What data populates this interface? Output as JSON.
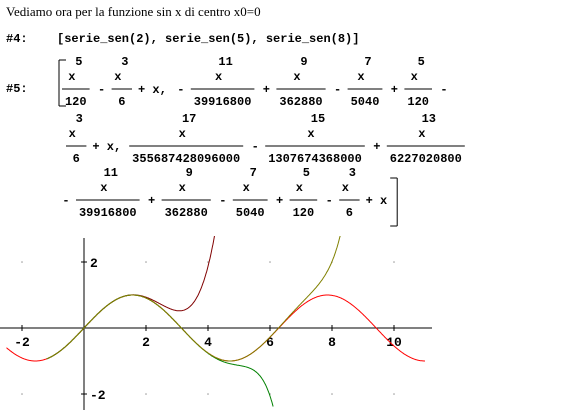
{
  "comment": "Vediamo ora per la funzione sin x di centro x0=0",
  "line4": {
    "label": "#4:",
    "input": "[serie_sen(2), serie_sen(5), serie_sen(8)]"
  },
  "line5": {
    "label": "#5:",
    "terms_row1": [
      {
        "kind": "frac",
        "exp": "5",
        "var": "x",
        "den": "120",
        "sign": ""
      },
      {
        "kind": "frac",
        "exp": "3",
        "var": "x",
        "den": "6",
        "sign": "-"
      },
      {
        "kind": "text",
        "text": "+ x,",
        "sign": ""
      },
      {
        "kind": "frac",
        "exp": "11",
        "var": "x",
        "den": "39916800",
        "sign": "-"
      },
      {
        "kind": "frac",
        "exp": "9",
        "var": "x",
        "den": "362880",
        "sign": "+"
      },
      {
        "kind": "frac",
        "exp": "7",
        "var": "x",
        "den": "5040",
        "sign": "-"
      },
      {
        "kind": "frac",
        "exp": "5",
        "var": "x",
        "den": "120",
        "sign": "+"
      },
      {
        "kind": "sign",
        "sign": "-"
      }
    ],
    "terms_row2": [
      {
        "kind": "frac",
        "exp": "3",
        "var": "x",
        "den": "6",
        "sign": ""
      },
      {
        "kind": "text",
        "text": "+ x,",
        "sign": ""
      },
      {
        "kind": "frac",
        "exp": "17",
        "var": "x",
        "den": "355687428096000",
        "sign": ""
      },
      {
        "kind": "frac",
        "exp": "15",
        "var": "x",
        "den": "1307674368000",
        "sign": "-"
      },
      {
        "kind": "frac",
        "exp": "13",
        "var": "x",
        "den": "6227020800",
        "sign": "+"
      }
    ],
    "terms_row3": [
      {
        "kind": "frac",
        "exp": "11",
        "var": "x",
        "den": "39916800",
        "sign": "-"
      },
      {
        "kind": "frac",
        "exp": "9",
        "var": "x",
        "den": "362880",
        "sign": "+"
      },
      {
        "kind": "frac",
        "exp": "7",
        "var": "x",
        "den": "5040",
        "sign": "-"
      },
      {
        "kind": "frac",
        "exp": "5",
        "var": "x",
        "den": "120",
        "sign": "+"
      },
      {
        "kind": "frac",
        "exp": "3",
        "var": "x",
        "den": "6",
        "sign": "-"
      },
      {
        "kind": "text",
        "text": "+ x",
        "sign": ""
      }
    ]
  },
  "chart_data": {
    "type": "line",
    "xlim": [
      -2.5,
      11
    ],
    "ylim": [
      -2.4,
      2.4
    ],
    "x_ticks": [
      "-2",
      "2",
      "4",
      "6",
      "8",
      "10"
    ],
    "y_ticks": [
      "2",
      "-2"
    ],
    "grid": "dotted",
    "series": [
      {
        "color": "#ff0000",
        "func": "sin",
        "x": [
          -2.5,
          11
        ]
      },
      {
        "color": "#800000",
        "order": 5,
        "x": [
          -1.2,
          4.3
        ]
      },
      {
        "color": "#008000",
        "order": 11,
        "x": [
          -1.2,
          6.1
        ]
      },
      {
        "color": "#808000",
        "order": 17,
        "x": [
          -1.2,
          8.3
        ]
      }
    ]
  }
}
